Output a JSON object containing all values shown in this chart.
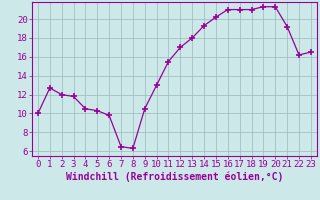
{
  "x": [
    0,
    1,
    2,
    3,
    4,
    5,
    6,
    7,
    8,
    9,
    10,
    11,
    12,
    13,
    14,
    15,
    16,
    17,
    18,
    19,
    20,
    21,
    22,
    23
  ],
  "y": [
    10,
    12.7,
    12,
    11.8,
    10.5,
    10.3,
    9.8,
    6.5,
    6.3,
    10.5,
    13,
    15.5,
    17,
    18,
    19.3,
    20.2,
    21,
    21,
    21,
    21.3,
    21.3,
    19.2,
    16.2,
    16.5
  ],
  "xlabel": "Windchill (Refroidissement éolien,°C)",
  "line_color": "#990099",
  "marker_color": "#990099",
  "bg_color": "#cce8e8",
  "grid_color": "#99bbbb",
  "xlim": [
    -0.5,
    23.5
  ],
  "ylim": [
    5.5,
    21.8
  ],
  "yticks": [
    6,
    8,
    10,
    12,
    14,
    16,
    18,
    20
  ],
  "xtick_labels": [
    "0",
    "1",
    "2",
    "3",
    "4",
    "5",
    "6",
    "7",
    "8",
    "9",
    "10",
    "11",
    "12",
    "13",
    "14",
    "15",
    "16",
    "17",
    "18",
    "19",
    "20",
    "21",
    "22",
    "23"
  ],
  "label_fontsize": 7,
  "tick_fontsize": 6.5
}
